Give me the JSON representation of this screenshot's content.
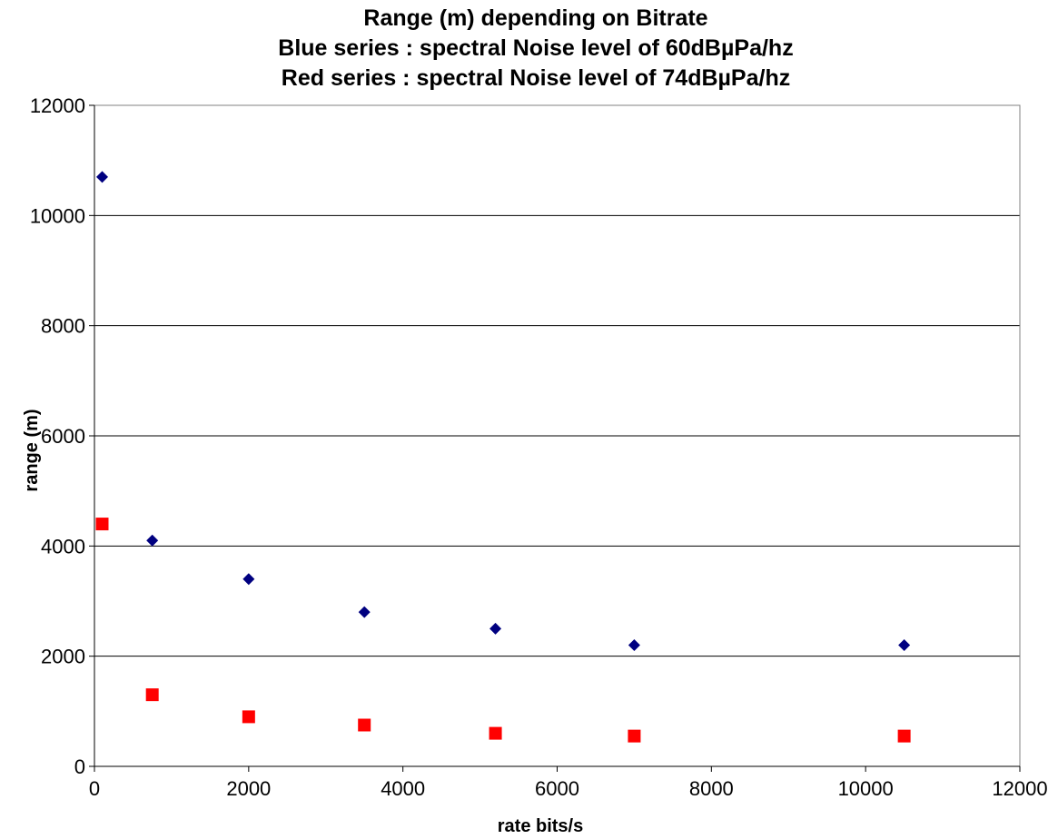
{
  "chart_data": {
    "type": "scatter",
    "title_lines": [
      "Range (m)  depending on Bitrate",
      "Blue series : spectral Noise level of 60dBµPa/hz",
      "Red series : spectral Noise level of 74dBµPa/hz"
    ],
    "xlabel": "rate bits/s",
    "ylabel": "range (m)",
    "xlim": [
      0,
      12000
    ],
    "ylim": [
      0,
      12000
    ],
    "xticks": [
      "0",
      "2000",
      "4000",
      "6000",
      "8000",
      "10000",
      "12000"
    ],
    "yticks": [
      "0",
      "2000",
      "4000",
      "6000",
      "8000",
      "10000",
      "12000"
    ],
    "grid": "horizontal",
    "legend": "none",
    "series": [
      {
        "color": "#000080",
        "marker": "diamond",
        "points": [
          {
            "x": 100,
            "y": 10700
          },
          {
            "x": 750,
            "y": 4100
          },
          {
            "x": 2000,
            "y": 3400
          },
          {
            "x": 3500,
            "y": 2800
          },
          {
            "x": 5200,
            "y": 2500
          },
          {
            "x": 7000,
            "y": 2200
          },
          {
            "x": 10500,
            "y": 2200
          }
        ]
      },
      {
        "color": "#ff0000",
        "marker": "square",
        "points": [
          {
            "x": 100,
            "y": 4400
          },
          {
            "x": 750,
            "y": 1300
          },
          {
            "x": 2000,
            "y": 900
          },
          {
            "x": 3500,
            "y": 750
          },
          {
            "x": 5200,
            "y": 600
          },
          {
            "x": 7000,
            "y": 550
          },
          {
            "x": 10500,
            "y": 550
          }
        ]
      }
    ]
  }
}
